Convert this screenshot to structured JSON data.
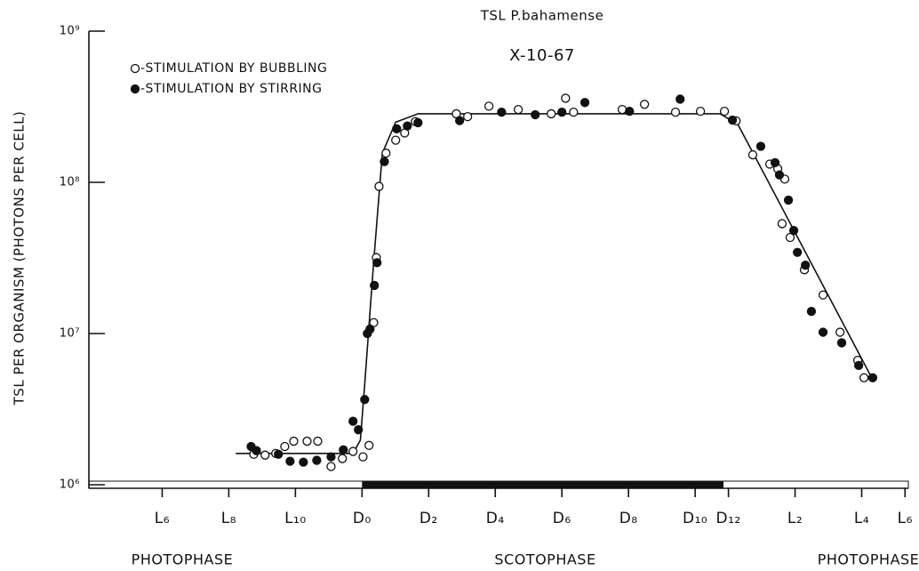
{
  "chart_data": {
    "type": "scatter",
    "title": "TSL P.bahamense",
    "subtitle": "X-10-67",
    "y_label": "TSL PER ORGANISM (PHOTONS PER CELL)",
    "log_y": true,
    "xlim": [
      -8.2,
      16.4
    ],
    "ylim": [
      1000000,
      1000000000
    ],
    "yticks": [
      {
        "value": 1000000,
        "label": "10⁶"
      },
      {
        "value": 10000000,
        "label": "10⁷"
      },
      {
        "value": 100000000,
        "label": "10⁸"
      },
      {
        "value": 1000000000,
        "label": "10⁹"
      }
    ],
    "xticks": [
      {
        "value": -6,
        "label": "L₆"
      },
      {
        "value": -4,
        "label": "L₈"
      },
      {
        "value": -2,
        "label": "L₁₀"
      },
      {
        "value": 0,
        "label": "D₀"
      },
      {
        "value": 2,
        "label": "D₂"
      },
      {
        "value": 4,
        "label": "D₄"
      },
      {
        "value": 6,
        "label": "D₆"
      },
      {
        "value": 8,
        "label": "D₈"
      },
      {
        "value": 10,
        "label": "D₁₀"
      },
      {
        "value": 11,
        "label": "D₁₂"
      },
      {
        "value": 13,
        "label": "L₂"
      },
      {
        "value": 15,
        "label": "L₄"
      },
      {
        "value": 16.3,
        "label": "L₆"
      }
    ],
    "dark_phase": [
      0,
      10.85
    ],
    "phase_labels": [
      {
        "value": -5.4,
        "label": "PHOTOPHASE"
      },
      {
        "value": 5.5,
        "label": "SCOTOPHASE"
      },
      {
        "value": 15.2,
        "label": "PHOTOPHASE"
      }
    ],
    "series": [
      {
        "name": "-STIMULATION BY BUBBLING",
        "color": "#111111",
        "marker": "open",
        "x": [
          -3.25,
          -2.91,
          -2.59,
          -2.32,
          -2.05,
          -1.65,
          -1.33,
          -0.93,
          -0.59,
          -0.27,
          0.03,
          0.21,
          0.35,
          0.43,
          0.51,
          0.72,
          1.01,
          1.28,
          1.6,
          2.83,
          3.17,
          3.81,
          4.69,
          5.68,
          6.11,
          6.35,
          7.81,
          8.48,
          9.41,
          10.16,
          10.88,
          11.23,
          11.73,
          12.24,
          12.48,
          12.69,
          12.61,
          12.85,
          13.28,
          13.84,
          14.35,
          14.88,
          15.07
        ],
        "values": [
          1590000,
          1570000,
          1610000,
          1790000,
          1940000,
          1940000,
          1940000,
          1320000,
          1490000,
          1660000,
          1530000,
          1820000,
          11800000,
          31800000,
          94000000,
          156000000,
          190000000,
          212000000,
          252000000,
          284000000,
          272000000,
          319000000,
          303000000,
          284000000,
          360000000,
          291000000,
          303000000,
          328000000,
          291000000,
          295000000,
          295000000,
          255000000,
          152000000,
          132000000,
          123000000,
          105000000,
          53300000,
          43200000,
          26400000,
          18000000,
          10200000,
          6650000,
          5100000
        ]
      },
      {
        "name": "-STIMULATION BY STIRRING",
        "color": "#111111",
        "marker": "filled",
        "x": [
          -3.33,
          -3.17,
          -2.51,
          -2.16,
          -1.76,
          -1.36,
          -0.93,
          -0.56,
          -0.27,
          -0.11,
          0.08,
          0.16,
          0.24,
          0.37,
          0.45,
          0.67,
          1.04,
          1.36,
          1.68,
          2.93,
          4.19,
          5.2,
          6.0,
          6.69,
          8.03,
          9.55,
          11.12,
          11.97,
          12.4,
          12.53,
          12.8,
          12.96,
          13.07,
          13.31,
          13.49,
          13.84,
          14.4,
          14.91,
          15.33
        ],
        "values": [
          1790000,
          1680000,
          1590000,
          1430000,
          1410000,
          1450000,
          1530000,
          1700000,
          2630000,
          2310000,
          3660000,
          10000000,
          10700000,
          20800000,
          29400000,
          137000000,
          226000000,
          236000000,
          248000000,
          256000000,
          291000000,
          280000000,
          291000000,
          337000000,
          295000000,
          355000000,
          258000000,
          173000000,
          135000000,
          112000000,
          76300000,
          48000000,
          34400000,
          28300000,
          14000000,
          10200000,
          8680000,
          6150000,
          5100000
        ]
      }
    ],
    "curve": {
      "color": "#111111",
      "x": [
        -3.79,
        -0.27,
        -0.05,
        0.08,
        0.35,
        0.61,
        1.01,
        1.68,
        10.75,
        11.28,
        11.81,
        15.28
      ],
      "values": [
        1610000,
        1610000,
        1970000,
        4600000,
        29800000,
        156000000,
        250000000,
        284000000,
        284000000,
        242000000,
        146000000,
        5200000
      ]
    }
  }
}
